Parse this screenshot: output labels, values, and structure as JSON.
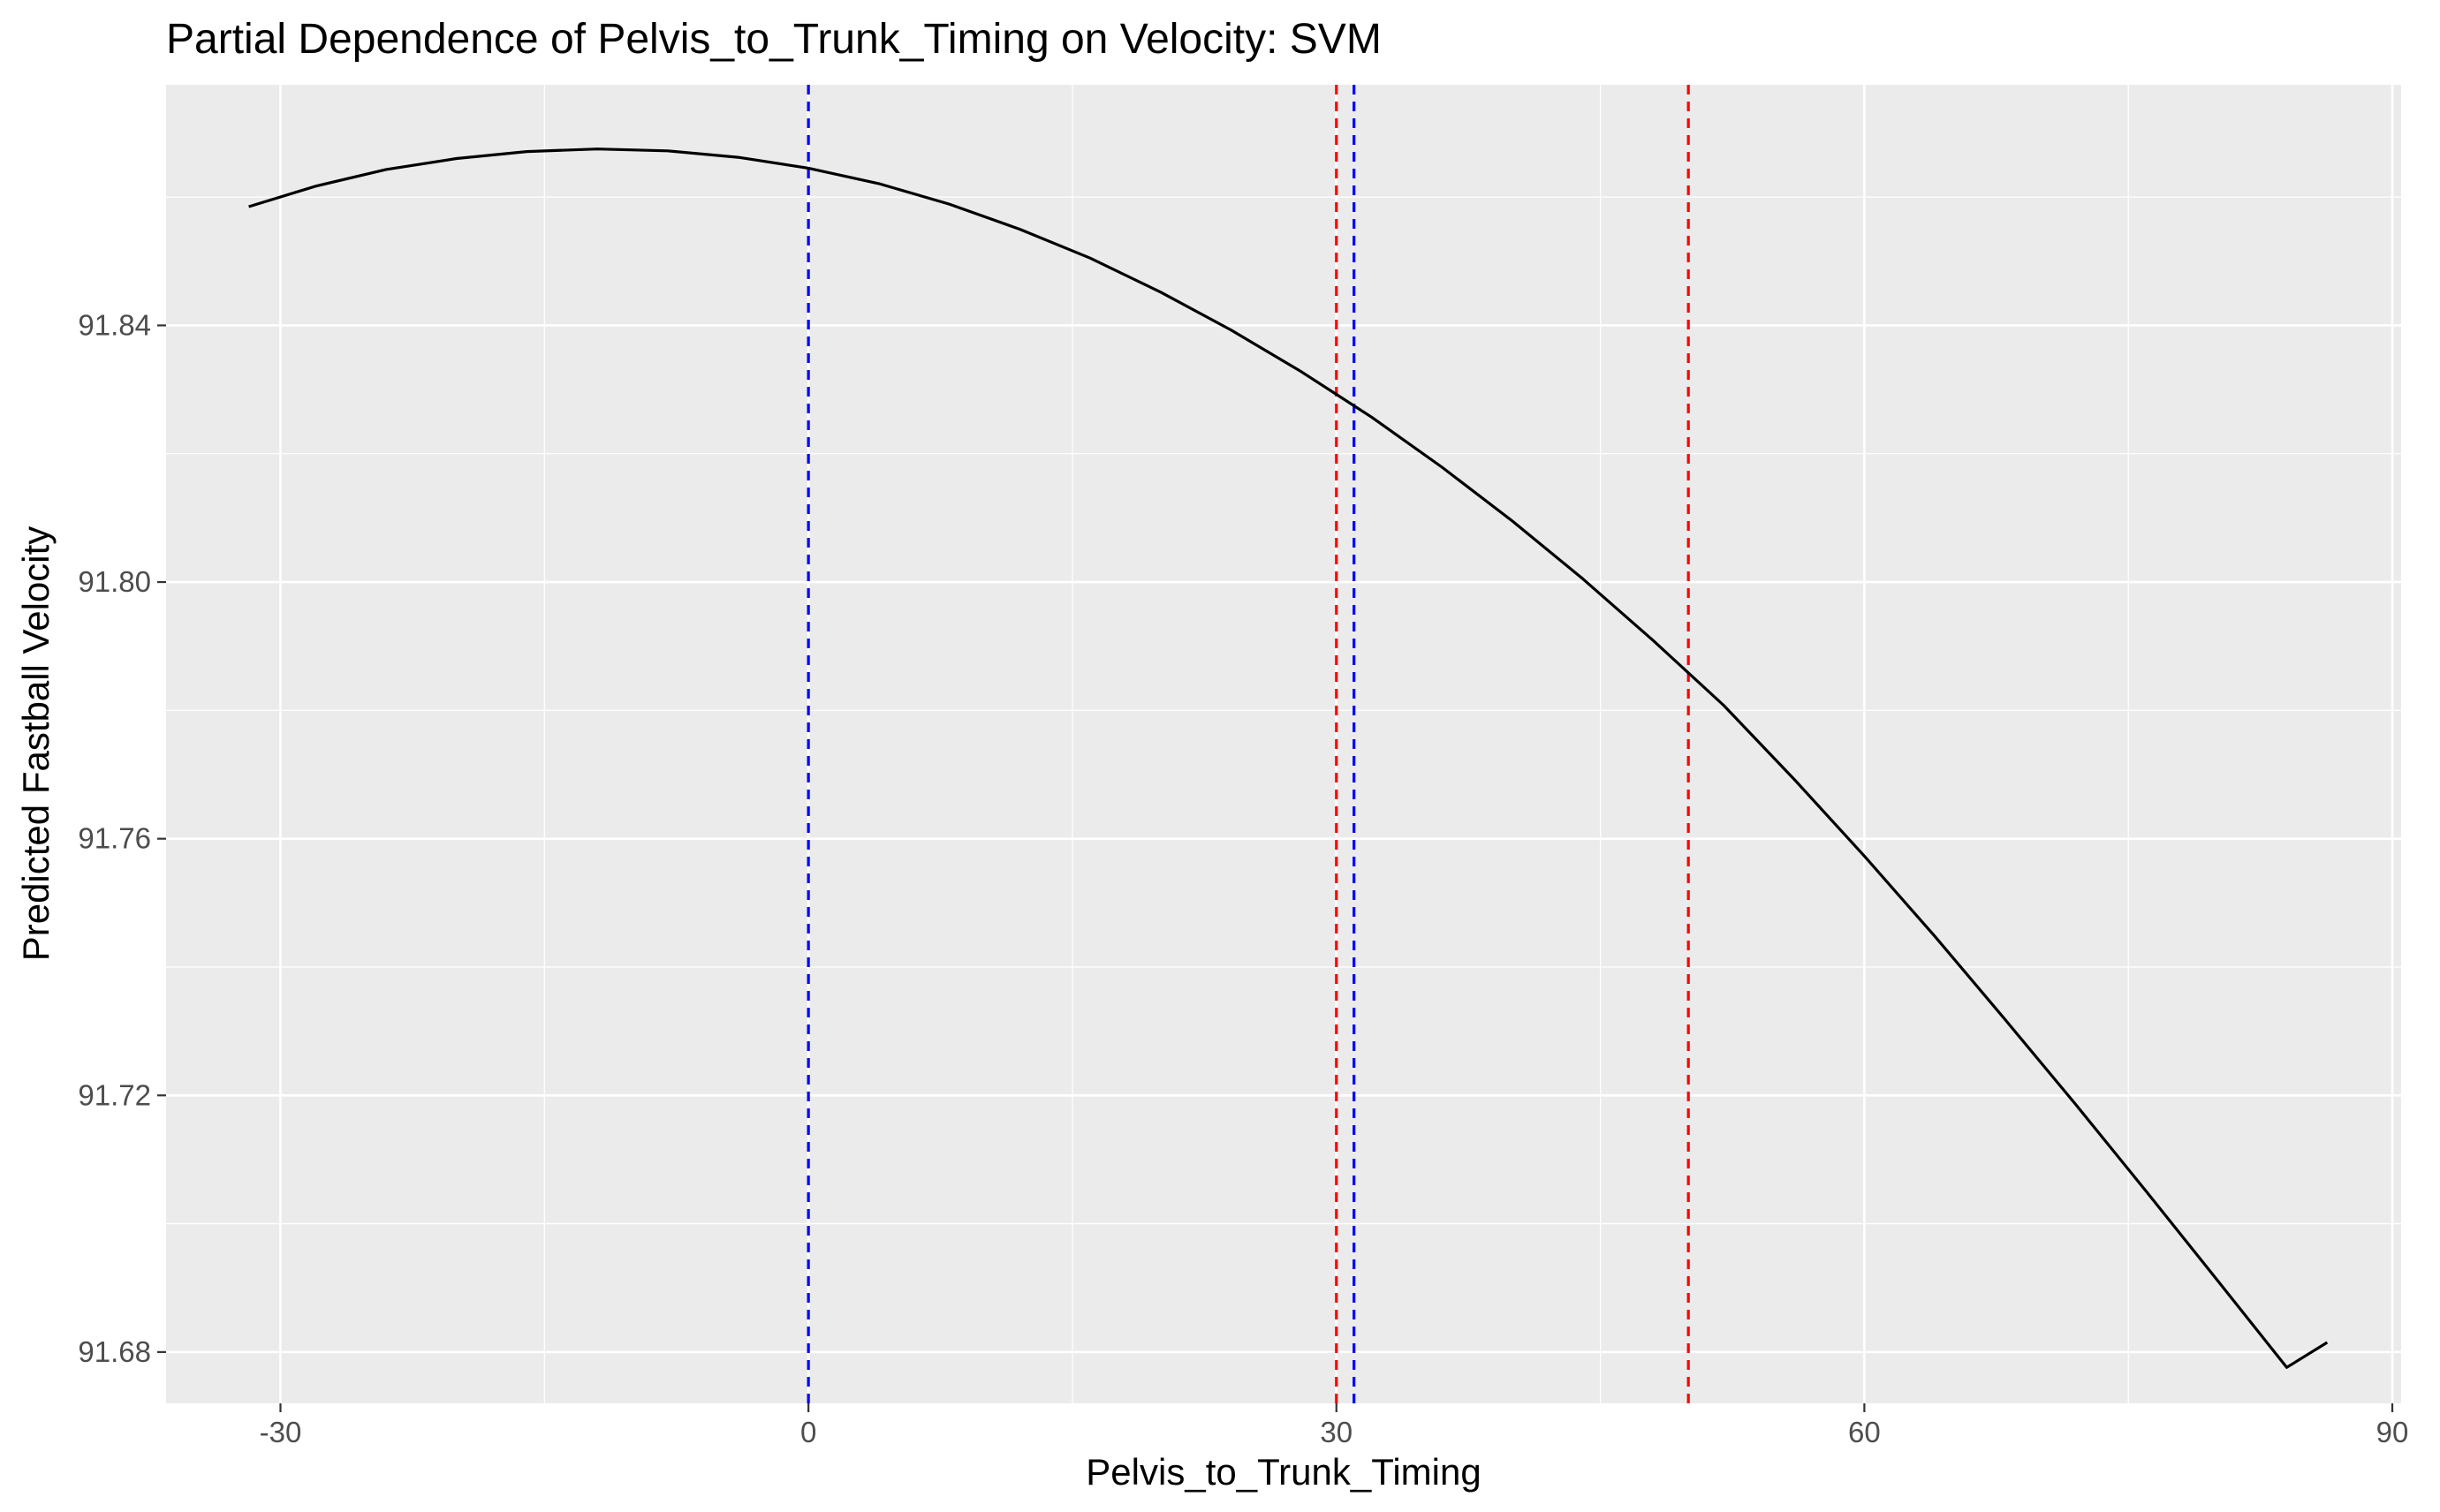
{
  "chart_data": {
    "type": "line",
    "title": "Partial Dependence of Pelvis_to_Trunk_Timing on Velocity: SVM",
    "xlabel": "Pelvis_to_Trunk_Timing",
    "ylabel": "Predicted Fastball Velocity",
    "xlim": [
      -36.5,
      90.5
    ],
    "ylim": [
      91.672,
      91.8775
    ],
    "x_ticks": [
      {
        "value": -30,
        "label": "-30"
      },
      {
        "value": 0,
        "label": "0"
      },
      {
        "value": 30,
        "label": "30"
      },
      {
        "value": 60,
        "label": "60"
      },
      {
        "value": 90,
        "label": "90"
      }
    ],
    "y_ticks": [
      {
        "value": 91.68,
        "label": "91.68"
      },
      {
        "value": 91.72,
        "label": "91.72"
      },
      {
        "value": 91.76,
        "label": "91.76"
      },
      {
        "value": 91.8,
        "label": "91.80"
      },
      {
        "value": 91.84,
        "label": "91.84"
      }
    ],
    "grid": true,
    "background": "#ebebeb",
    "series": [
      {
        "color": "#000000",
        "x": [
          -31.8,
          -28,
          -24,
          -20,
          -16,
          -12,
          -8,
          -4,
          0,
          4,
          8,
          12,
          16,
          20,
          24,
          28,
          32,
          36,
          40,
          44,
          48,
          52,
          56,
          60,
          64,
          68,
          72,
          76,
          80,
          84,
          86.3
        ],
        "y": [
          91.8585,
          91.8617,
          91.8643,
          91.866,
          91.8671,
          91.8675,
          91.8672,
          91.8662,
          91.8645,
          91.8621,
          91.8589,
          91.855,
          91.8505,
          91.8452,
          91.8393,
          91.8328,
          91.8257,
          91.8179,
          91.8095,
          91.8005,
          91.7909,
          91.7808,
          91.7693,
          91.7573,
          91.7448,
          91.7318,
          91.7186,
          91.7051,
          91.6914,
          91.6776,
          91.6815
        ]
      }
    ],
    "reference_lines": [
      {
        "x": 0,
        "color": "#0000ff",
        "style": "dashed"
      },
      {
        "x": 31,
        "color": "#0000ff",
        "style": "dashed"
      },
      {
        "x": 30,
        "color": "#ff0000",
        "style": "dashed"
      },
      {
        "x": 50,
        "color": "#ff0000",
        "style": "dashed"
      }
    ]
  }
}
